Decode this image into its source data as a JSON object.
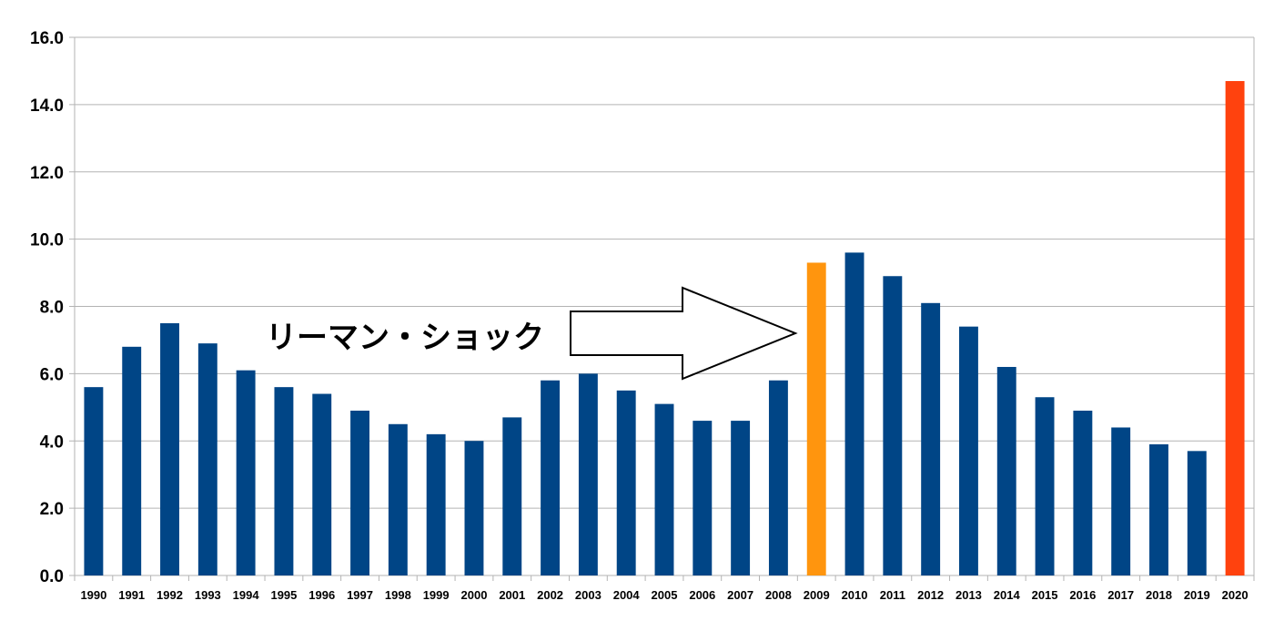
{
  "chart_data": {
    "type": "bar",
    "title": "",
    "xlabel": "",
    "ylabel": "",
    "ylim": [
      0,
      16
    ],
    "y_ticks": [
      "0.0",
      "2.0",
      "4.0",
      "6.0",
      "8.0",
      "10.0",
      "12.0",
      "14.0",
      "16.0"
    ],
    "grid": true,
    "categories": [
      "1990",
      "1991",
      "1992",
      "1993",
      "1994",
      "1995",
      "1996",
      "1997",
      "1998",
      "1999",
      "2000",
      "2001",
      "2002",
      "2003",
      "2004",
      "2005",
      "2006",
      "2007",
      "2008",
      "2009",
      "2010",
      "2011",
      "2012",
      "2013",
      "2014",
      "2015",
      "2016",
      "2017",
      "2018",
      "2019",
      "2020"
    ],
    "values": [
      5.6,
      6.8,
      7.5,
      6.9,
      6.1,
      5.6,
      5.4,
      4.9,
      4.5,
      4.2,
      4.0,
      4.7,
      5.8,
      6.0,
      5.5,
      5.1,
      4.6,
      4.6,
      5.8,
      9.3,
      9.6,
      8.9,
      8.1,
      7.4,
      6.2,
      5.3,
      4.9,
      4.4,
      3.9,
      3.7,
      14.7
    ],
    "colors": {
      "default": "#004586",
      "highlight_2009": "#ff950e",
      "highlight_2020": "#ff420e",
      "grid": "#b3b3b3"
    },
    "highlights": {
      "2009": "#ff950e",
      "2020": "#ff420e"
    },
    "annotation": {
      "text": "リーマン・ショック",
      "target": "2009",
      "shape": "arrow-right"
    }
  }
}
